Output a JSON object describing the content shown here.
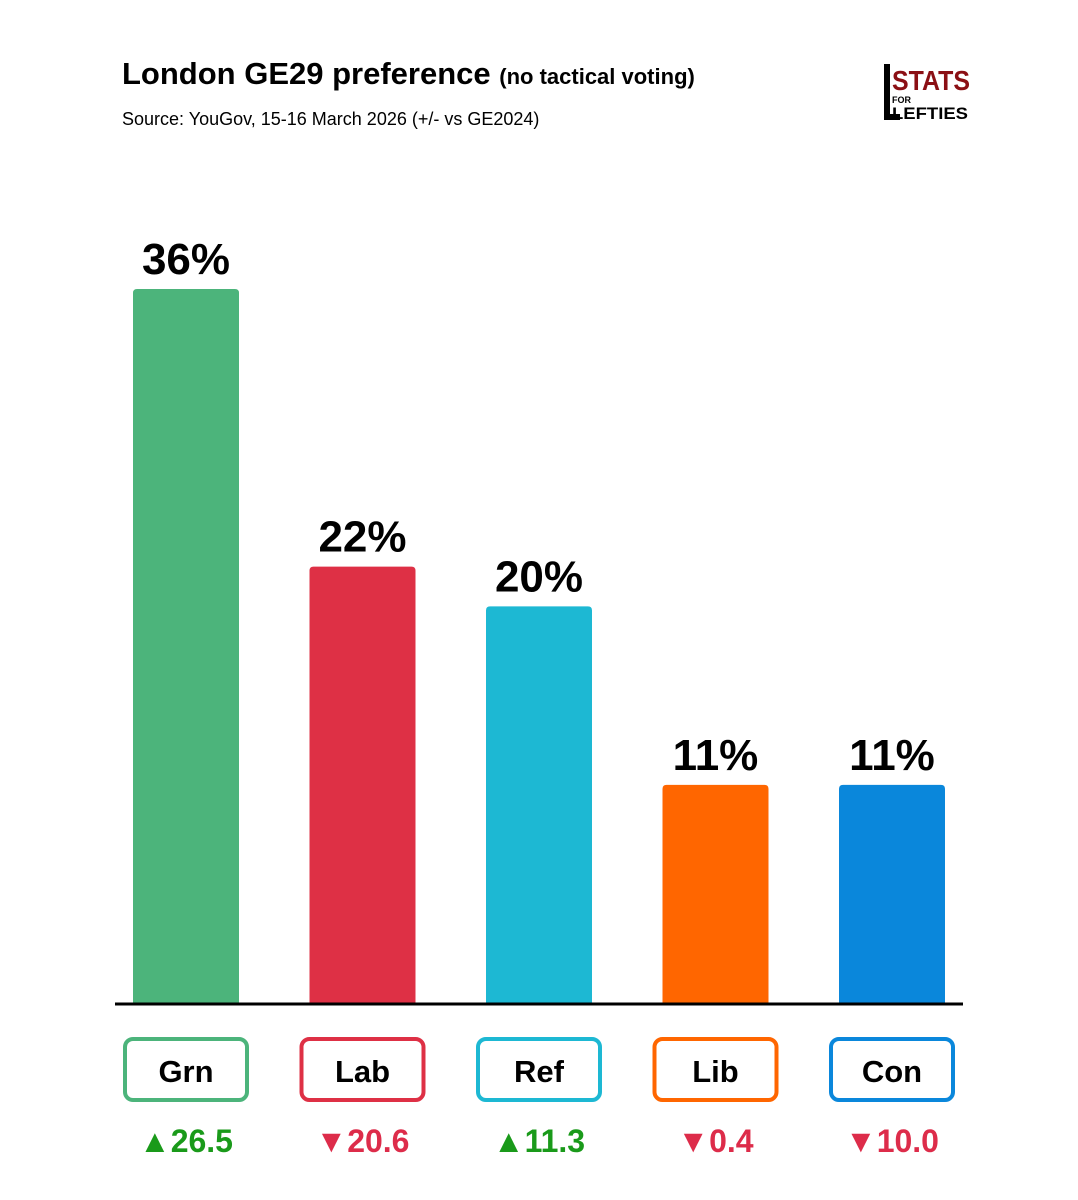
{
  "header": {
    "title": "London GE29 preference",
    "title_suffix": "(no tactical voting)",
    "source": "Source: YouGov, 15-16 March 2026 (+/- vs GE2024)"
  },
  "logo": {
    "line1": "STATS",
    "line2": "FOR",
    "line3": "LEFTIES",
    "color": "#8b0f14"
  },
  "colors": {
    "up": "#1a9a1a",
    "down": "#dd2c4a"
  },
  "chart_data": {
    "type": "bar",
    "title": "London GE29 preference (no tactical voting)",
    "categories": [
      "Grn",
      "Lab",
      "Ref",
      "Lib",
      "Con"
    ],
    "values": [
      36,
      22,
      20,
      11,
      11
    ],
    "value_labels": [
      "36%",
      "22%",
      "20%",
      "11%",
      "11%"
    ],
    "changes": [
      "▲26.5",
      "▼20.6",
      "▲11.3",
      "▼0.4",
      "▼10.0"
    ],
    "change_direction": [
      "up",
      "down",
      "up",
      "down",
      "down"
    ],
    "colors": [
      "#4cb47b",
      "#de3045",
      "#1db8d3",
      "#ff6600",
      "#0a87db"
    ],
    "ylim": [
      0,
      36
    ],
    "xlabel": "",
    "ylabel": "",
    "grid": false
  }
}
